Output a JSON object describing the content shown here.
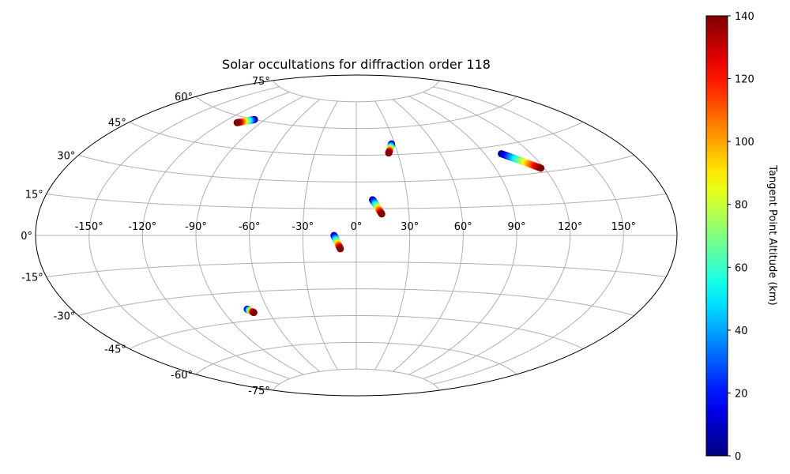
{
  "chart_data": {
    "type": "scatter",
    "projection": "aitoff-hammer",
    "title": "Solar occultations for diffraction order 118",
    "xlabel": "",
    "ylabel": "",
    "longitude_ticks": [
      "-150°",
      "-120°",
      "-90°",
      "-60°",
      "-30°",
      "0°",
      "30°",
      "60°",
      "90°",
      "120°",
      "150°"
    ],
    "latitude_ticks": [
      "75°",
      "60°",
      "45°",
      "30°",
      "15°",
      "0°",
      "-15°",
      "-30°",
      "-45°",
      "-60°",
      "-75°"
    ],
    "grid": true,
    "colorbar": {
      "label": "Tangent Point Altitude (km)",
      "min": 0,
      "max": 140,
      "colormap": "jet",
      "ticks": [
        "0",
        "20",
        "40",
        "60",
        "80",
        "100",
        "120",
        "140"
      ]
    },
    "series": [
      {
        "lon_start": -99,
        "lat_start": 60,
        "lon_end": -109,
        "lat_end": 57,
        "alt_start": 0,
        "alt_end": 140
      },
      {
        "lon_start": 27.5,
        "lat_start": 51,
        "lon_end": 23.5,
        "lat_end": 46,
        "alt_start": 0,
        "alt_end": 140
      },
      {
        "lon_start": 101,
        "lat_start": 41,
        "lon_end": 118,
        "lat_end": 32,
        "alt_start": 0,
        "alt_end": 140
      },
      {
        "lon_start": 9.5,
        "lat_start": 20,
        "lon_end": 14.5,
        "lat_end": 12,
        "alt_start": 0,
        "alt_end": 140
      },
      {
        "lon_start": -12.5,
        "lat_start": 0,
        "lon_end": -9,
        "lat_end": -7.5,
        "alt_start": 0,
        "alt_end": 140
      },
      {
        "lon_start": -73.5,
        "lat_start": -39,
        "lon_end": -70.5,
        "lat_end": -41,
        "alt_start": 0,
        "alt_end": 140
      }
    ]
  }
}
